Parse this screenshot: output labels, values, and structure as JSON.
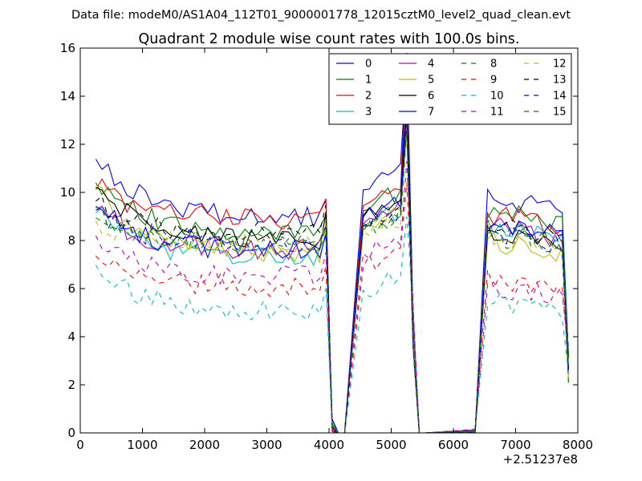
{
  "chart_data": {
    "type": "line",
    "suptitle": "Data file: modeM0/AS1A04_112T01_9000001778_12015cztM0_level2_quad_clean.evt",
    "title": "Quadrant 2 module wise count rates with 100.0s bins.",
    "xlabel": "",
    "ylabel": "",
    "x_offset_label": "+2.51237e8",
    "xlim": [
      0,
      8000
    ],
    "ylim": [
      0,
      16
    ],
    "xticks": [
      0,
      1000,
      2000,
      3000,
      4000,
      5000,
      6000,
      7000,
      8000
    ],
    "yticks": [
      0,
      2,
      4,
      6,
      8,
      10,
      12,
      14,
      16
    ],
    "x_ticklabels": [
      "0",
      "1000",
      "2000",
      "3000",
      "4000",
      "5000",
      "6000",
      "7000",
      "8000"
    ],
    "y_ticklabels": [
      "0",
      "2",
      "4",
      "6",
      "8",
      "10",
      "12",
      "14",
      "16"
    ],
    "legend_position": "top-right",
    "segments": [
      {
        "start": 250,
        "end": 3950
      },
      {
        "start": 4550,
        "end": 5150
      },
      {
        "start": 6550,
        "end": 7750
      }
    ],
    "gap_x": [
      4050,
      4150,
      4250,
      5350,
      5450,
      5550,
      6350
    ],
    "peak": {
      "x": 5250
    },
    "series": [
      {
        "name": "0",
        "color": "#0000ff",
        "dash": "solid",
        "level": 9.0,
        "start": 11.6,
        "seg2": 10.3,
        "peak": 15.3,
        "seg3": 9.8,
        "seed": 1
      },
      {
        "name": "1",
        "color": "#008000",
        "dash": "solid",
        "level": 8.3,
        "start": 10.6,
        "seg2": 9.4,
        "peak": 14.3,
        "seg3": 9.2,
        "seed": 2
      },
      {
        "name": "2",
        "color": "#ff0000",
        "dash": "solid",
        "level": 8.9,
        "start": 10.3,
        "seg2": 9.6,
        "peak": 15.6,
        "seg3": 9.1,
        "seed": 3
      },
      {
        "name": "3",
        "color": "#00bfbf",
        "dash": "solid",
        "level": 7.3,
        "start": 9.3,
        "seg2": 8.7,
        "peak": 13.6,
        "seg3": 8.5,
        "seed": 4
      },
      {
        "name": "4",
        "color": "#bf00bf",
        "dash": "solid",
        "level": 7.6,
        "start": 9.4,
        "seg2": 8.8,
        "peak": 13.7,
        "seg3": 8.6,
        "seed": 5
      },
      {
        "name": "5",
        "color": "#bfbf00",
        "dash": "solid",
        "level": 7.5,
        "start": 10.4,
        "seg2": 8.5,
        "peak": 13.3,
        "seg3": 8.0,
        "seed": 6
      },
      {
        "name": "6",
        "color": "#000000",
        "dash": "solid",
        "level": 8.0,
        "start": 10.3,
        "seg2": 9.1,
        "peak": 13.4,
        "seg3": 8.3,
        "seed": 7
      },
      {
        "name": "7",
        "color": "#0000ff",
        "dash": "solid",
        "level": 7.6,
        "start": 9.5,
        "seg2": 9.0,
        "peak": 15.8,
        "seg3": 8.7,
        "seed": 8
      },
      {
        "name": "8",
        "color": "#008000",
        "dash": "dashed",
        "level": 7.9,
        "start": 9.0,
        "seg2": 8.4,
        "peak": 12.6,
        "seg3": 8.2,
        "seed": 9
      },
      {
        "name": "9",
        "color": "#ff0000",
        "dash": "dashed",
        "level": 6.1,
        "start": 7.4,
        "seg2": 6.9,
        "peak": 10.4,
        "seg3": 6.4,
        "seed": 10
      },
      {
        "name": "10",
        "color": "#00bfbf",
        "dash": "dashed",
        "level": 5.1,
        "start": 7.0,
        "seg2": 5.9,
        "peak": 9.0,
        "seg3": 5.5,
        "seed": 11
      },
      {
        "name": "11",
        "color": "#bf00bf",
        "dash": "dashed",
        "level": 6.5,
        "start": 8.2,
        "seg2": 7.4,
        "peak": 11.3,
        "seg3": 6.1,
        "seed": 12
      },
      {
        "name": "12",
        "color": "#bfbf00",
        "dash": "dashed",
        "level": 7.8,
        "start": 8.8,
        "seg2": 8.3,
        "peak": 12.4,
        "seg3": 8.3,
        "seed": 13
      },
      {
        "name": "13",
        "color": "#000000",
        "dash": "dashed",
        "level": 8.3,
        "start": 9.6,
        "seg2": 8.6,
        "peak": 13.0,
        "seg3": 8.6,
        "seed": 14
      },
      {
        "name": "14",
        "color": "#0000ff",
        "dash": "dashed",
        "level": 7.9,
        "start": 9.2,
        "seg2": 8.5,
        "peak": 12.9,
        "seg3": 8.3,
        "seed": 15
      },
      {
        "name": "15",
        "color": "#008000",
        "dash": "dashed",
        "level": 7.8,
        "start": 9.3,
        "seg2": 8.5,
        "peak": 12.8,
        "seg3": 8.4,
        "seed": 16
      }
    ]
  }
}
